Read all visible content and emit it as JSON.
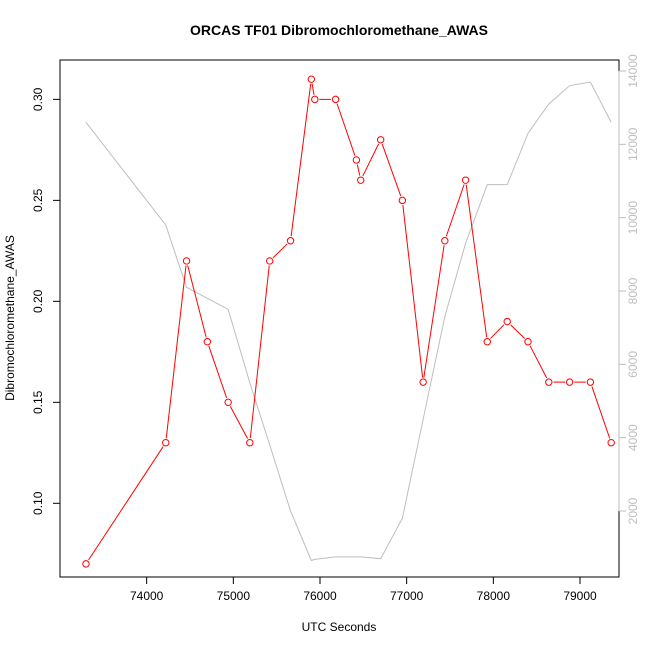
{
  "chart_data": {
    "type": "line",
    "title": "ORCAS TF01 Dibromochloromethane_AWAS",
    "xlabel": "UTC Seconds",
    "ylabel": "Dibromochloromethane_AWAS",
    "xlim": [
      73000,
      79450
    ],
    "ylim": [
      0.0635,
      0.3195
    ],
    "y2lim": [
      200,
      14300
    ],
    "x_ticks": [
      74000,
      75000,
      76000,
      77000,
      78000,
      79000
    ],
    "y_ticks": [
      0.1,
      0.15,
      0.2,
      0.25,
      0.3
    ],
    "y2_ticks": [
      2000,
      4000,
      6000,
      8000,
      10000,
      12000,
      14000
    ],
    "x_tick_labels": [
      "74000",
      "75000",
      "76000",
      "77000",
      "78000",
      "79000"
    ],
    "y_tick_labels": [
      "0.10",
      "0.15",
      "0.20",
      "0.25",
      "0.30"
    ],
    "y2_tick_labels": [
      "2000",
      "4000",
      "6000",
      "8000",
      "10000",
      "12000",
      "14000"
    ],
    "grid": false,
    "legend": "none",
    "colors": {
      "primary": "#ff0000",
      "secondary": "#bebebe",
      "axis": "#000000"
    },
    "series": [
      {
        "axis": "left",
        "markers": true,
        "x": [
          73300,
          74220,
          74460,
          74700,
          74940,
          75190,
          75420,
          75660,
          75900,
          75940,
          76180,
          76420,
          76470,
          76700,
          76950,
          77190,
          77440,
          77680,
          77930,
          78160,
          78400,
          78640,
          78880,
          79120,
          79360
        ],
        "values": [
          0.07,
          0.13,
          0.22,
          0.18,
          0.15,
          0.13,
          0.22,
          0.23,
          0.31,
          0.3,
          0.3,
          0.27,
          0.26,
          0.28,
          0.25,
          0.16,
          0.23,
          0.26,
          0.18,
          0.19,
          0.18,
          0.16,
          0.16,
          0.16,
          0.13
        ]
      },
      {
        "axis": "right",
        "markers": false,
        "x": [
          73300,
          74220,
          74460,
          74700,
          74940,
          75190,
          75420,
          75660,
          75900,
          75940,
          76180,
          76420,
          76470,
          76700,
          76950,
          77190,
          77440,
          77680,
          77930,
          78160,
          78400,
          78640,
          78880,
          79120,
          79360
        ],
        "values": [
          12600,
          9800,
          8100,
          7800,
          7500,
          5500,
          3800,
          2000,
          650,
          680,
          750,
          750,
          750,
          700,
          1800,
          4500,
          7300,
          9300,
          10900,
          10900,
          12300,
          13100,
          13600,
          13700,
          12600
        ]
      }
    ]
  }
}
